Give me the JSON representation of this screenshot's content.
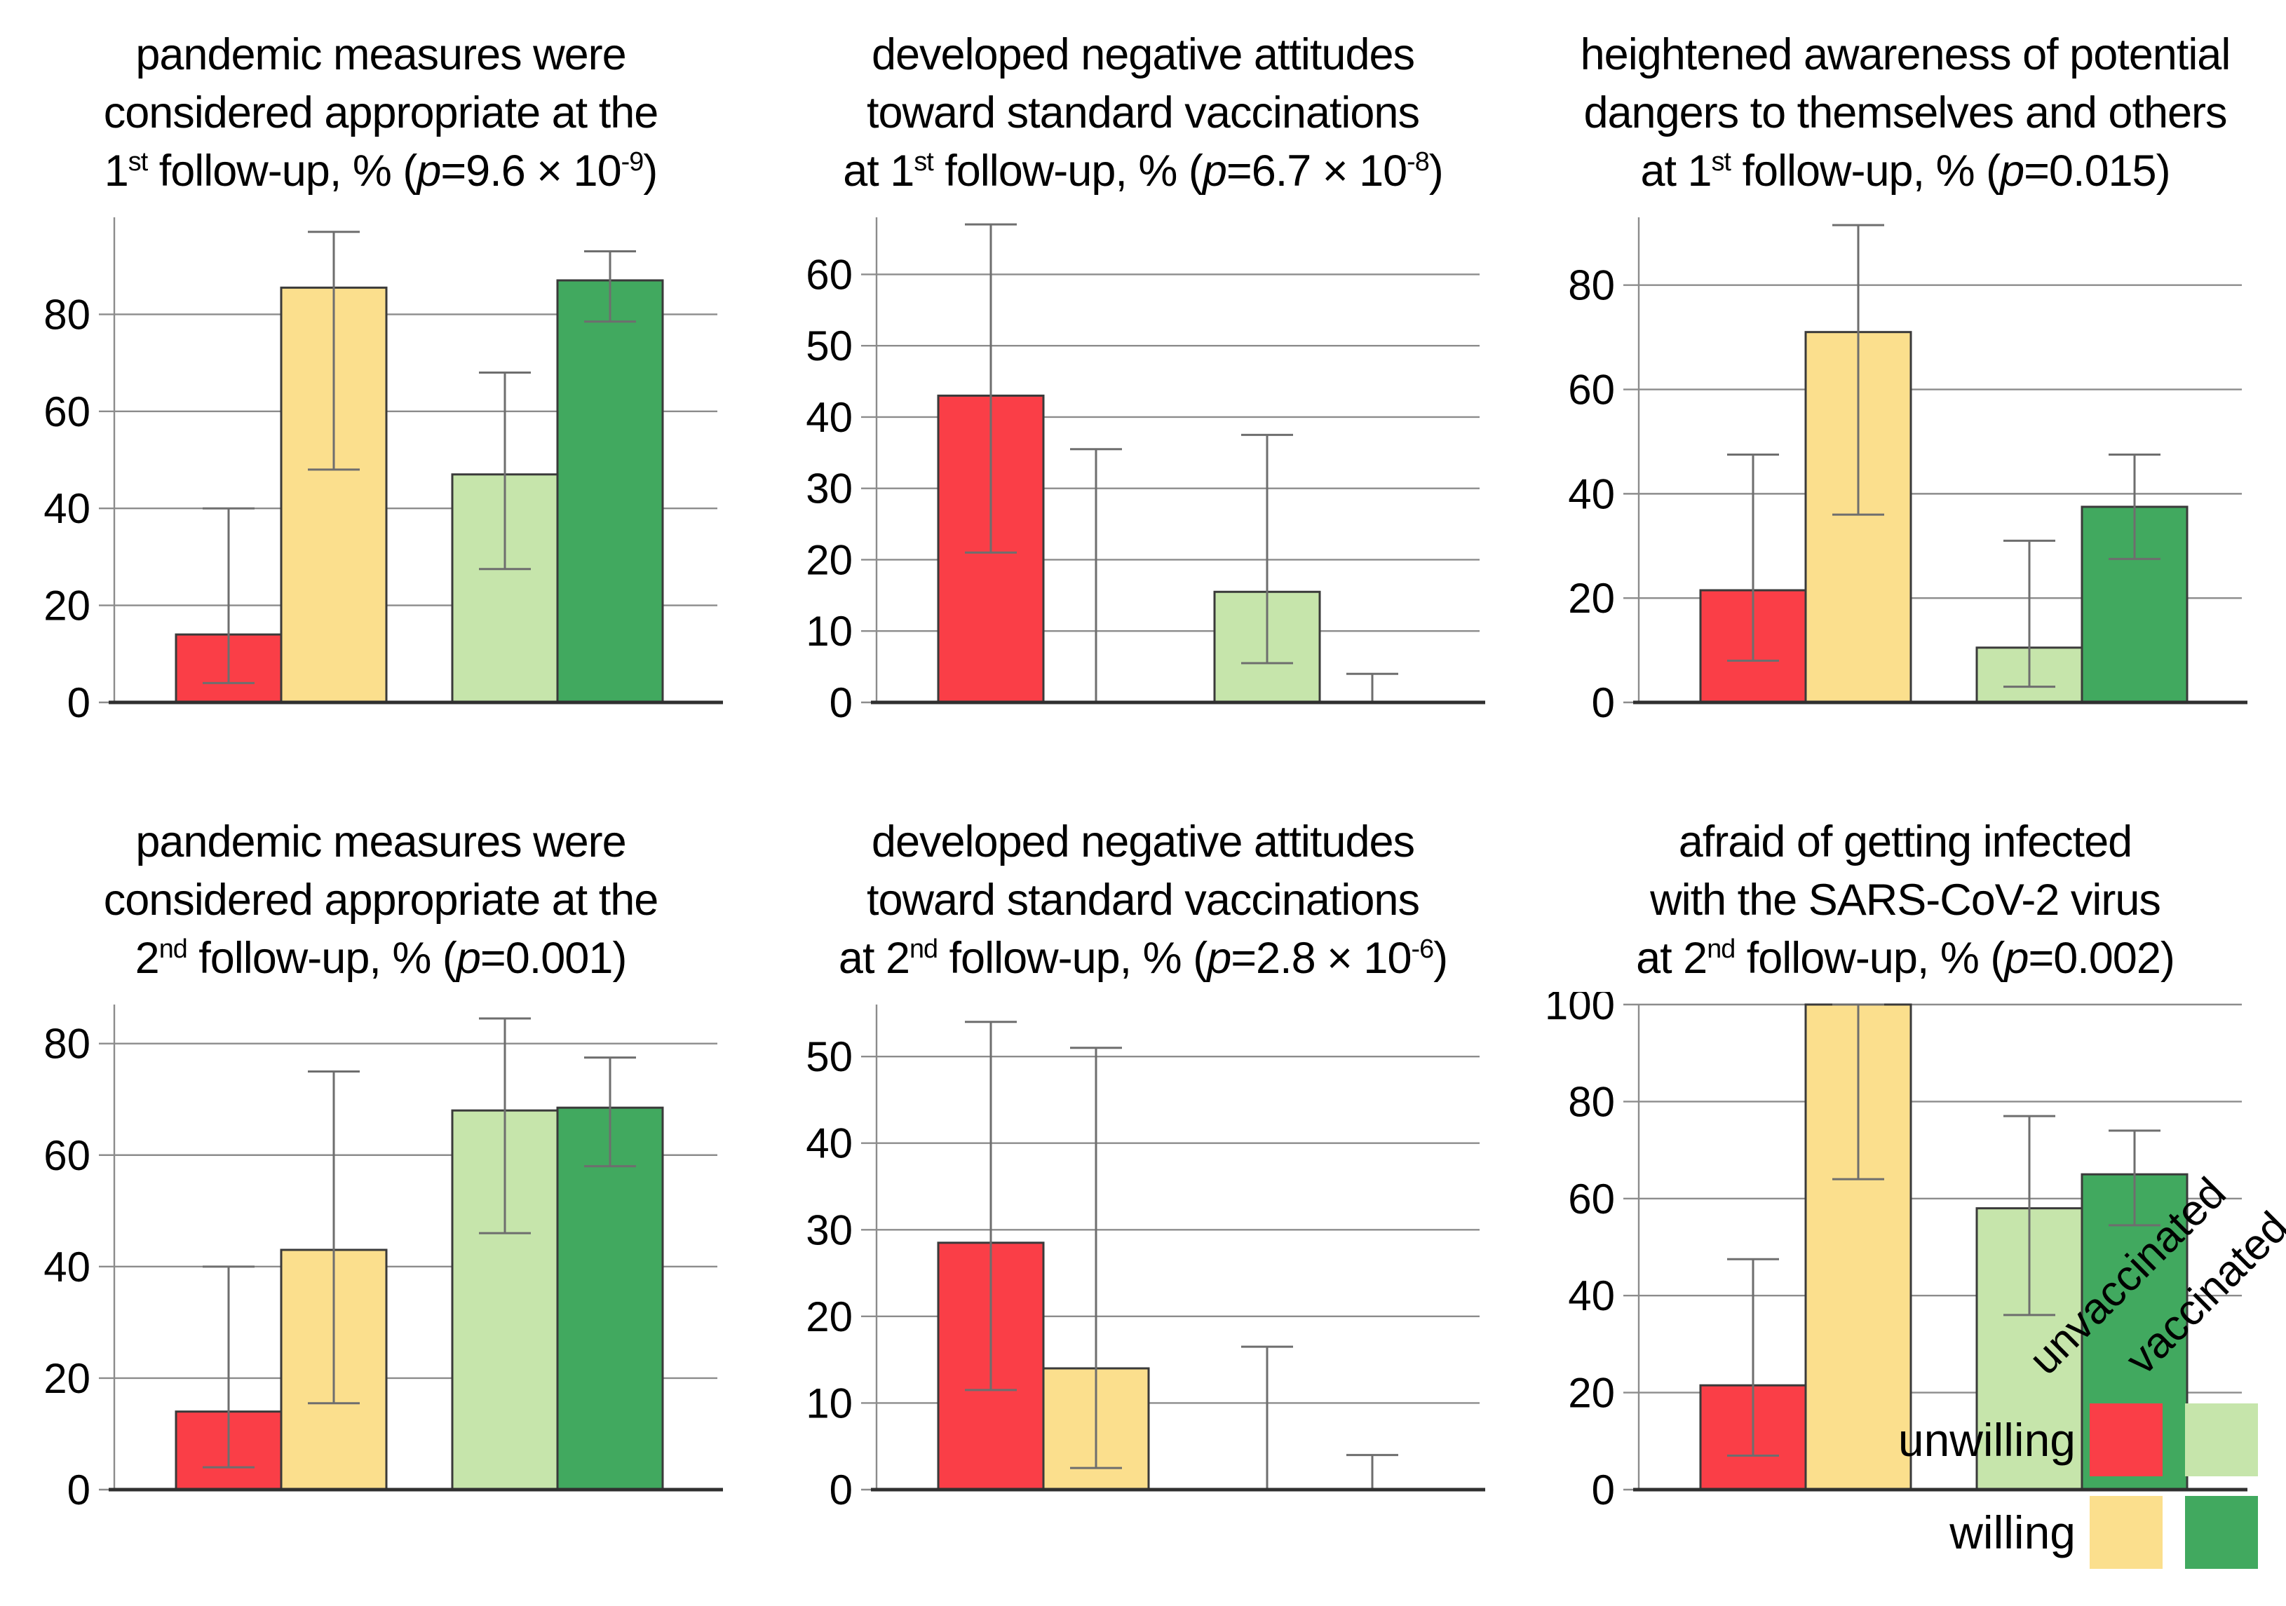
{
  "figure": {
    "background": "#ffffff",
    "kind": "2x3 grid of grouped bar charts with error bars"
  },
  "colors": {
    "unwilling_unvaccinated": "#fa3e47",
    "willing_unvaccinated": "#fbdf8d",
    "unwilling_vaccinated": "#c6e5ab",
    "willing_vaccinated": "#41a95f",
    "grid": "#8c8c8c",
    "axis_baseline": "#303030",
    "error_bar": "#6e6e6e",
    "bar_outline": "#3a3a3a",
    "text": "#000000"
  },
  "legend": {
    "column_labels": [
      "unvaccinated",
      "vaccinated"
    ],
    "row_labels": [
      "unwilling",
      "willing"
    ],
    "swatch_colors": [
      [
        "#fa3e47",
        "#c6e5ab"
      ],
      [
        "#fbdf8d",
        "#41a95f"
      ]
    ]
  },
  "chart_data": [
    {
      "type": "bar",
      "title_lines": [
        [
          {
            "t": "pandemic measures were"
          }
        ],
        [
          {
            "t": "considered appropriate at the"
          }
        ],
        [
          {
            "t": "1"
          },
          {
            "t": "st",
            "sup": true
          },
          {
            "t": " follow-up, % ("
          },
          {
            "t": "p",
            "italic": true
          },
          {
            "t": "=9.6 × 10"
          },
          {
            "t": "-9",
            "sup": true
          },
          {
            "t": ")"
          }
        ]
      ],
      "categories": [
        "unwilling unvaccinated",
        "willing unvaccinated",
        "unwilling vaccinated",
        "willing vaccinated"
      ],
      "bar_colors": [
        "#fa3e47",
        "#fbdf8d",
        "#c6e5ab",
        "#41a95f"
      ],
      "values": [
        14,
        85.5,
        47,
        87
      ],
      "error_low": [
        4,
        48,
        27.5,
        78.5
      ],
      "error_high": [
        40,
        97,
        68,
        93
      ],
      "yticks": [
        0,
        20,
        40,
        60,
        80
      ],
      "ylim": [
        0,
        100
      ],
      "ylabel": "%",
      "xlabel": "",
      "grid": true,
      "legend_position": "figure bottom-right"
    },
    {
      "type": "bar",
      "title_lines": [
        [
          {
            "t": "developed negative attitudes"
          }
        ],
        [
          {
            "t": "toward standard vaccinations"
          }
        ],
        [
          {
            "t": "at 1"
          },
          {
            "t": "st",
            "sup": true
          },
          {
            "t": " follow-up, % ("
          },
          {
            "t": "p",
            "italic": true
          },
          {
            "t": "=6.7 × 10"
          },
          {
            "t": "-8",
            "sup": true
          },
          {
            "t": ")"
          }
        ]
      ],
      "categories": [
        "unwilling unvaccinated",
        "willing unvaccinated",
        "unwilling vaccinated",
        "willing vaccinated"
      ],
      "bar_colors": [
        "#fa3e47",
        "#fbdf8d",
        "#c6e5ab",
        "#41a95f"
      ],
      "values": [
        43,
        0,
        15.5,
        0
      ],
      "error_low": [
        21,
        0,
        5.5,
        0
      ],
      "error_high": [
        67,
        35.5,
        37.5,
        4
      ],
      "yticks": [
        0,
        10,
        20,
        30,
        40,
        50,
        60
      ],
      "ylim": [
        0,
        68
      ],
      "ylabel": "%",
      "xlabel": "",
      "grid": true,
      "legend_position": "figure bottom-right"
    },
    {
      "type": "bar",
      "title_lines": [
        [
          {
            "t": "heightened awareness of potential"
          }
        ],
        [
          {
            "t": "dangers to themselves and others"
          }
        ],
        [
          {
            "t": "at 1"
          },
          {
            "t": "st",
            "sup": true
          },
          {
            "t": " follow-up, % ("
          },
          {
            "t": "p",
            "italic": true
          },
          {
            "t": "=0.015)"
          }
        ]
      ],
      "categories": [
        "unwilling unvaccinated",
        "willing unvaccinated",
        "unwilling vaccinated",
        "willing vaccinated"
      ],
      "bar_colors": [
        "#fa3e47",
        "#fbdf8d",
        "#c6e5ab",
        "#41a95f"
      ],
      "values": [
        21.5,
        71,
        10.5,
        37.5
      ],
      "error_low": [
        8,
        36,
        3,
        27.5
      ],
      "error_high": [
        47.5,
        91.5,
        31,
        47.5
      ],
      "yticks": [
        0,
        20,
        40,
        60,
        80
      ],
      "ylim": [
        0,
        93
      ],
      "ylabel": "%",
      "xlabel": "",
      "grid": true,
      "legend_position": "figure bottom-right"
    },
    {
      "type": "bar",
      "title_lines": [
        [
          {
            "t": "pandemic measures were"
          }
        ],
        [
          {
            "t": "considered appropriate at the"
          }
        ],
        [
          {
            "t": "2"
          },
          {
            "t": "nd",
            "sup": true
          },
          {
            "t": " follow-up, % ("
          },
          {
            "t": "p",
            "italic": true
          },
          {
            "t": "=0.001)"
          }
        ]
      ],
      "categories": [
        "unwilling unvaccinated",
        "willing unvaccinated",
        "unwilling vaccinated",
        "willing vaccinated"
      ],
      "bar_colors": [
        "#fa3e47",
        "#fbdf8d",
        "#c6e5ab",
        "#41a95f"
      ],
      "values": [
        14,
        43,
        68,
        68.5
      ],
      "error_low": [
        4,
        15.5,
        46,
        58
      ],
      "error_high": [
        40,
        75,
        84.5,
        77.5
      ],
      "yticks": [
        0,
        20,
        40,
        60,
        80
      ],
      "ylim": [
        0,
        87
      ],
      "ylabel": "%",
      "xlabel": "",
      "grid": true,
      "legend_position": "figure bottom-right"
    },
    {
      "type": "bar",
      "title_lines": [
        [
          {
            "t": "developed negative attitudes"
          }
        ],
        [
          {
            "t": "toward standard vaccinations"
          }
        ],
        [
          {
            "t": "at 2"
          },
          {
            "t": "nd",
            "sup": true
          },
          {
            "t": " follow-up, % ("
          },
          {
            "t": "p",
            "italic": true
          },
          {
            "t": "=2.8 × 10"
          },
          {
            "t": "-6",
            "sup": true
          },
          {
            "t": ")"
          }
        ]
      ],
      "categories": [
        "unwilling unvaccinated",
        "willing unvaccinated",
        "unwilling vaccinated",
        "willing vaccinated"
      ],
      "bar_colors": [
        "#fa3e47",
        "#fbdf8d",
        "#c6e5ab",
        "#41a95f"
      ],
      "values": [
        28.5,
        14,
        0,
        0
      ],
      "error_low": [
        11.5,
        2.5,
        0,
        0
      ],
      "error_high": [
        54,
        51,
        16.5,
        4
      ],
      "yticks": [
        0,
        10,
        20,
        30,
        40,
        50
      ],
      "ylim": [
        0,
        56
      ],
      "ylabel": "%",
      "xlabel": "",
      "grid": true,
      "legend_position": "figure bottom-right"
    },
    {
      "type": "bar",
      "title_lines": [
        [
          {
            "t": "afraid of getting infected"
          }
        ],
        [
          {
            "t": "with the SARS-CoV-2 virus"
          }
        ],
        [
          {
            "t": "at 2"
          },
          {
            "t": "nd",
            "sup": true
          },
          {
            "t": " follow-up, % ("
          },
          {
            "t": "p",
            "italic": true
          },
          {
            "t": "=0.002)"
          }
        ]
      ],
      "categories": [
        "unwilling unvaccinated",
        "willing unvaccinated",
        "unwilling vaccinated",
        "willing vaccinated"
      ],
      "bar_colors": [
        "#fa3e47",
        "#fbdf8d",
        "#c6e5ab",
        "#41a95f"
      ],
      "values": [
        21.5,
        100,
        58,
        65
      ],
      "error_low": [
        7,
        64,
        36,
        54.5
      ],
      "error_high": [
        47.5,
        100,
        77,
        74
      ],
      "yticks": [
        0,
        20,
        40,
        60,
        80,
        100
      ],
      "ylim": [
        0,
        100
      ],
      "ylabel": "%",
      "xlabel": "",
      "grid": true,
      "legend_position": "figure bottom-right"
    }
  ]
}
